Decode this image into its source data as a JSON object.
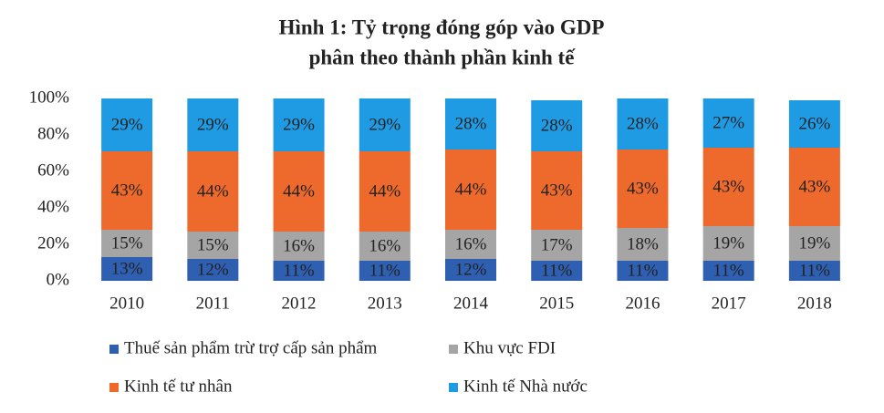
{
  "chart_data": {
    "type": "stacked_bar",
    "title": [
      "Hình 1: Tỷ trọng đóng góp vào GDP",
      "phân theo thành phần kinh tế"
    ],
    "categories": [
      "2010",
      "2011",
      "2012",
      "2013",
      "2014",
      "2015",
      "2016",
      "2017",
      "2018"
    ],
    "series": [
      {
        "name": "Thuế sản phẩm trừ trợ cấp sản phẩm",
        "color": "#2f5fb0",
        "values": [
          13,
          12,
          11,
          11,
          12,
          11,
          11,
          11,
          11
        ],
        "value_labels": [
          "13%",
          "12%",
          "11%",
          "11%",
          "12%",
          "11%",
          "11%",
          "11%",
          "11%"
        ]
      },
      {
        "name": "Khu vực FDI",
        "color": "#a5a5a5",
        "values": [
          15,
          15,
          16,
          16,
          16,
          17,
          18,
          19,
          19
        ],
        "value_labels": [
          "15%",
          "15%",
          "16%",
          "16%",
          "16%",
          "17%",
          "18%",
          "19%",
          "19%"
        ]
      },
      {
        "name": "Kinh tế tư nhân",
        "color": "#ed6a2c",
        "values": [
          43,
          44,
          44,
          44,
          44,
          43,
          43,
          43,
          43
        ],
        "value_labels": [
          "43%",
          "44%",
          "44%",
          "44%",
          "44%",
          "43%",
          "43%",
          "43%",
          "43%"
        ]
      },
      {
        "name": "Kinh tế Nhà nước",
        "color": "#1f9be3",
        "values": [
          29,
          29,
          29,
          29,
          28,
          28,
          28,
          27,
          26
        ],
        "value_labels": [
          "29%",
          "29%",
          "29%",
          "29%",
          "28%",
          "28%",
          "28%",
          "27%",
          "26%"
        ]
      }
    ],
    "ylim": [
      0,
      100
    ],
    "yticks": [
      {
        "value": 0,
        "label": "0%"
      },
      {
        "value": 20,
        "label": "20%"
      },
      {
        "value": 40,
        "label": "40%"
      },
      {
        "value": 60,
        "label": "60%"
      },
      {
        "value": 80,
        "label": "80%"
      },
      {
        "value": 100,
        "label": "100%"
      }
    ],
    "grid": false
  }
}
